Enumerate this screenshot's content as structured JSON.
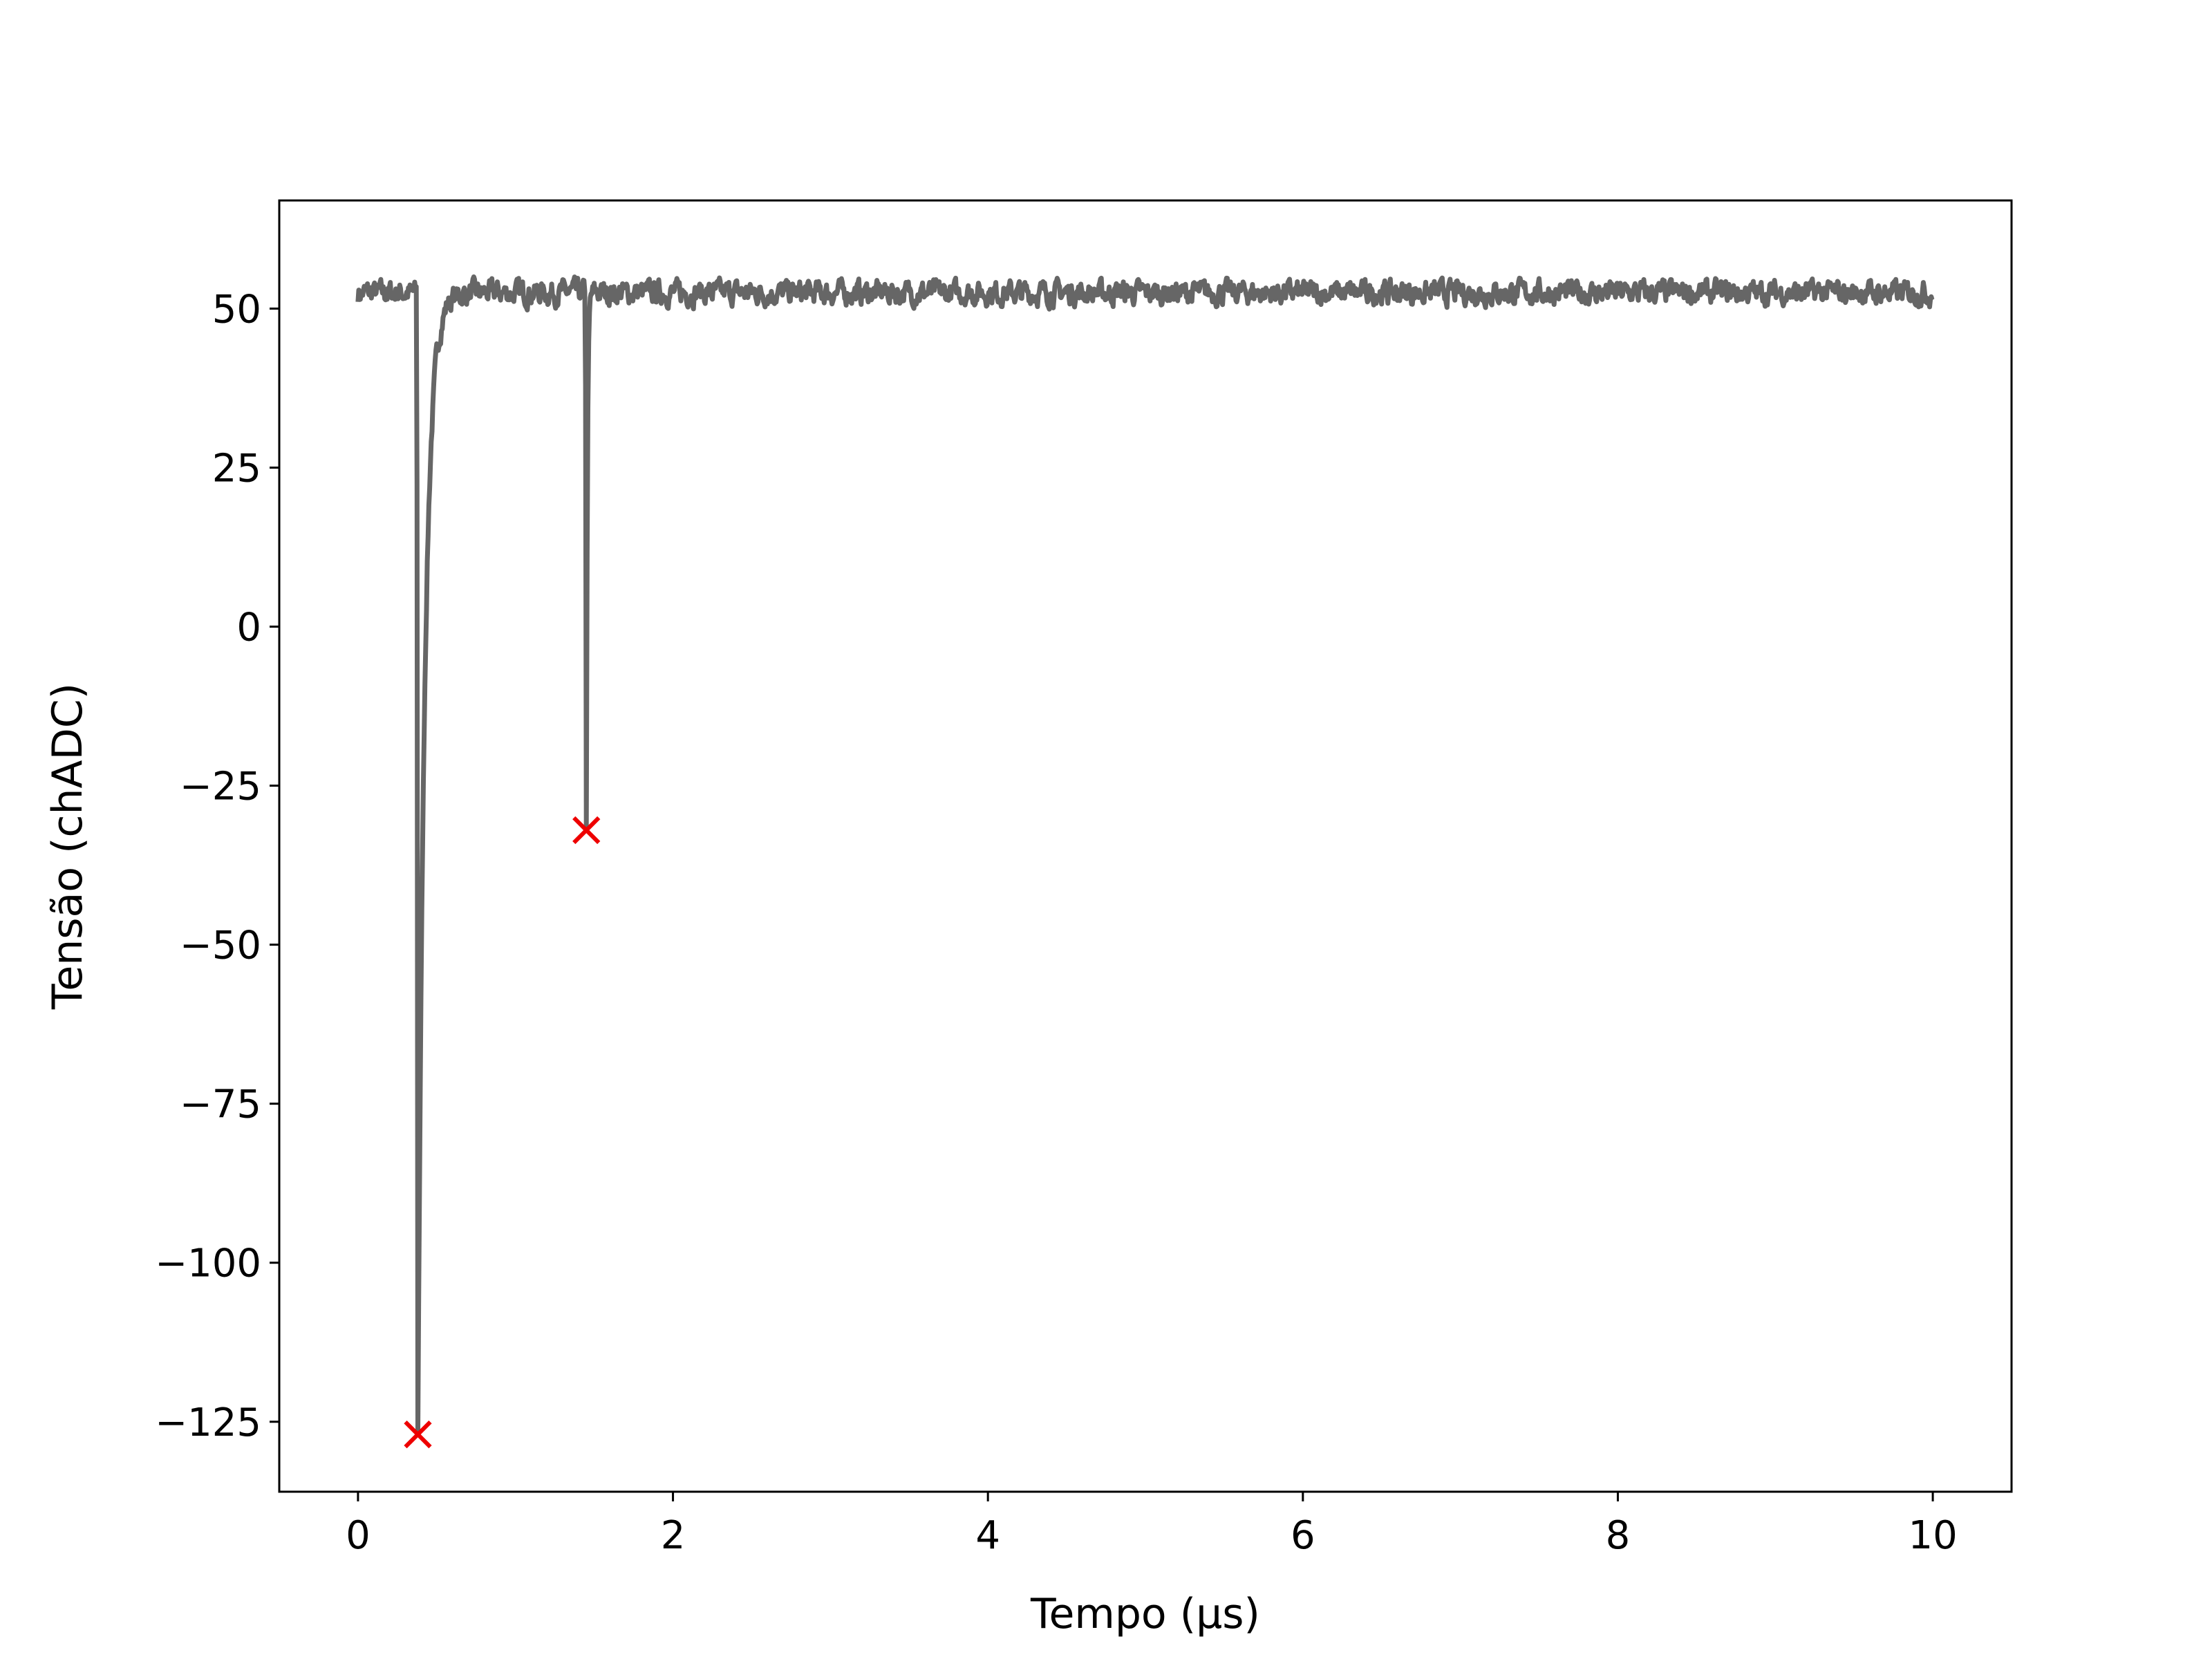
{
  "chart_data": {
    "type": "line",
    "xlabel": "Tempo (μs)",
    "ylabel": "Tensão (chADC)",
    "xlim": [
      -0.5,
      10.5
    ],
    "ylim": [
      -136,
      67
    ],
    "x_ticks": [
      0,
      2,
      4,
      6,
      8,
      10
    ],
    "y_ticks": [
      50,
      25,
      0,
      -25,
      -50,
      -75,
      -100,
      -125
    ],
    "x_tick_labels": [
      "0",
      "2",
      "4",
      "6",
      "8",
      "10"
    ],
    "y_tick_labels": [
      "50",
      "25",
      "0",
      "−25",
      "−50",
      "−75",
      "−100",
      "−125"
    ],
    "grid": false,
    "legend": "none",
    "series": [
      {
        "color": "#666666",
        "x_range": [
          0,
          10
        ],
        "baseline": 52.5,
        "noise_amplitude": 2.0,
        "pulses": [
          {
            "x": 0.38,
            "min": -127,
            "recovery": 0.25
          },
          {
            "x": 1.45,
            "min": -32,
            "recovery": 0.04
          }
        ]
      },
      {
        "type": "scatter",
        "marker": "x",
        "color": "#ee0000",
        "points": [
          {
            "x": 0.38,
            "y": -127
          },
          {
            "x": 1.45,
            "y": -32
          }
        ]
      }
    ]
  }
}
